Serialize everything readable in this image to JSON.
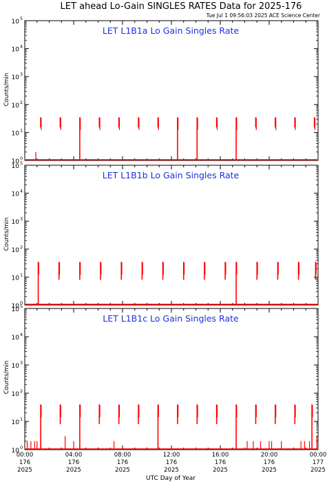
{
  "title": "LET ahead Lo-Gain SINGLES RATES Data for 2025-176",
  "timestamp": "Tue Jul  1 09:56:03 2025 ACE Science Center",
  "xlabel": "UTC Day of Year",
  "x_ticks": [
    {
      "time": "00:00",
      "doy": "176",
      "year": "2025"
    },
    {
      "time": "04:00",
      "doy": "176",
      "year": "2025"
    },
    {
      "time": "08:00",
      "doy": "176",
      "year": "2025"
    },
    {
      "time": "12:00",
      "doy": "176",
      "year": "2025"
    },
    {
      "time": "16:00",
      "doy": "176",
      "year": "2025"
    },
    {
      "time": "20:00",
      "doy": "176",
      "year": "2025"
    },
    {
      "time": "00:00",
      "doy": "177",
      "year": "2025"
    }
  ],
  "y_tick_exponents": [
    "0",
    "1",
    "2",
    "3",
    "4",
    "5"
  ],
  "y_tick_base": "10",
  "colors": {
    "data": "#ff0000",
    "panel_title": "#1f2fd8",
    "axes": "#000000"
  },
  "chart_data": [
    {
      "type": "line",
      "title": "LET L1B1a Lo Gain Singles Rate",
      "ylabel": "Counts/min",
      "yscale": "log",
      "ylim": [
        1,
        100000
      ],
      "xlim_hours": [
        0,
        24
      ],
      "baseline": 1,
      "bursts": [
        {
          "t": 1.3,
          "low": 15,
          "high": 35
        },
        {
          "t": 2.9,
          "low": 15,
          "high": 35
        },
        {
          "t": 4.5,
          "low": 1,
          "high": 35
        },
        {
          "t": 6.1,
          "low": 15,
          "high": 35
        },
        {
          "t": 7.7,
          "low": 15,
          "high": 35
        },
        {
          "t": 9.3,
          "low": 15,
          "high": 35
        },
        {
          "t": 10.9,
          "low": 15,
          "high": 35
        },
        {
          "t": 12.5,
          "low": 1,
          "high": 35
        },
        {
          "t": 14.1,
          "low": 1,
          "high": 35
        },
        {
          "t": 15.7,
          "low": 15,
          "high": 35
        },
        {
          "t": 17.3,
          "low": 1,
          "high": 35
        },
        {
          "t": 18.9,
          "low": 15,
          "high": 35
        },
        {
          "t": 20.5,
          "low": 15,
          "high": 35
        },
        {
          "t": 22.1,
          "low": 15,
          "high": 35
        },
        {
          "t": 23.7,
          "low": 15,
          "high": 35
        }
      ],
      "spikes": [
        {
          "t": 0.9,
          "value": 2
        }
      ]
    },
    {
      "type": "line",
      "title": "LET L1B1b Lo Gain Singles Rate",
      "ylabel": "Counts/min",
      "yscale": "log",
      "ylim": [
        1,
        100000
      ],
      "xlim_hours": [
        0,
        24
      ],
      "baseline": 1,
      "bursts": [
        {
          "t": 1.1,
          "low": 1,
          "high": 35
        },
        {
          "t": 2.8,
          "low": 8,
          "high": 35
        },
        {
          "t": 4.5,
          "low": 8,
          "high": 35
        },
        {
          "t": 6.2,
          "low": 8,
          "high": 35
        },
        {
          "t": 7.9,
          "low": 8,
          "high": 35
        },
        {
          "t": 9.6,
          "low": 8,
          "high": 35
        },
        {
          "t": 11.3,
          "low": 8,
          "high": 35
        },
        {
          "t": 13.0,
          "low": 8,
          "high": 35
        },
        {
          "t": 14.7,
          "low": 8,
          "high": 35
        },
        {
          "t": 16.4,
          "low": 8,
          "high": 35
        },
        {
          "t": 17.3,
          "low": 1,
          "high": 35
        },
        {
          "t": 19.0,
          "low": 8,
          "high": 35
        },
        {
          "t": 20.7,
          "low": 8,
          "high": 35
        },
        {
          "t": 22.4,
          "low": 8,
          "high": 35
        },
        {
          "t": 23.8,
          "low": 8,
          "high": 35
        }
      ],
      "spikes": []
    },
    {
      "type": "line",
      "title": "LET L1B1c Lo Gain Singles Rate",
      "ylabel": "Counts/min",
      "yscale": "log",
      "ylim": [
        1,
        100000
      ],
      "xlim_hours": [
        0,
        24
      ],
      "baseline": 1,
      "bursts": [
        {
          "t": 1.3,
          "low": 1,
          "high": 40
        },
        {
          "t": 2.9,
          "low": 8,
          "high": 40
        },
        {
          "t": 4.5,
          "low": 1,
          "high": 40
        },
        {
          "t": 6.1,
          "low": 8,
          "high": 40
        },
        {
          "t": 7.7,
          "low": 8,
          "high": 40
        },
        {
          "t": 9.3,
          "low": 8,
          "high": 40
        },
        {
          "t": 10.9,
          "low": 1,
          "high": 40
        },
        {
          "t": 12.5,
          "low": 8,
          "high": 40
        },
        {
          "t": 14.1,
          "low": 8,
          "high": 40
        },
        {
          "t": 15.7,
          "low": 8,
          "high": 40
        },
        {
          "t": 17.3,
          "low": 1,
          "high": 40
        },
        {
          "t": 18.9,
          "low": 8,
          "high": 40
        },
        {
          "t": 20.5,
          "low": 8,
          "high": 40
        },
        {
          "t": 22.1,
          "low": 8,
          "high": 40
        },
        {
          "t": 23.5,
          "low": 1,
          "high": 40
        }
      ],
      "spikes": [
        {
          "t": 0.2,
          "value": 2
        },
        {
          "t": 0.5,
          "value": 2
        },
        {
          "t": 0.8,
          "value": 2
        },
        {
          "t": 1.0,
          "value": 2
        },
        {
          "t": 3.3,
          "value": 3
        },
        {
          "t": 4.0,
          "value": 2
        },
        {
          "t": 7.3,
          "value": 2
        },
        {
          "t": 18.2,
          "value": 2
        },
        {
          "t": 18.7,
          "value": 2
        },
        {
          "t": 19.3,
          "value": 2
        },
        {
          "t": 20.0,
          "value": 2
        },
        {
          "t": 20.2,
          "value": 2
        },
        {
          "t": 21.0,
          "value": 2
        },
        {
          "t": 22.6,
          "value": 2
        },
        {
          "t": 22.9,
          "value": 2
        },
        {
          "t": 23.3,
          "value": 2
        },
        {
          "t": 23.9,
          "value": 3
        }
      ]
    }
  ]
}
